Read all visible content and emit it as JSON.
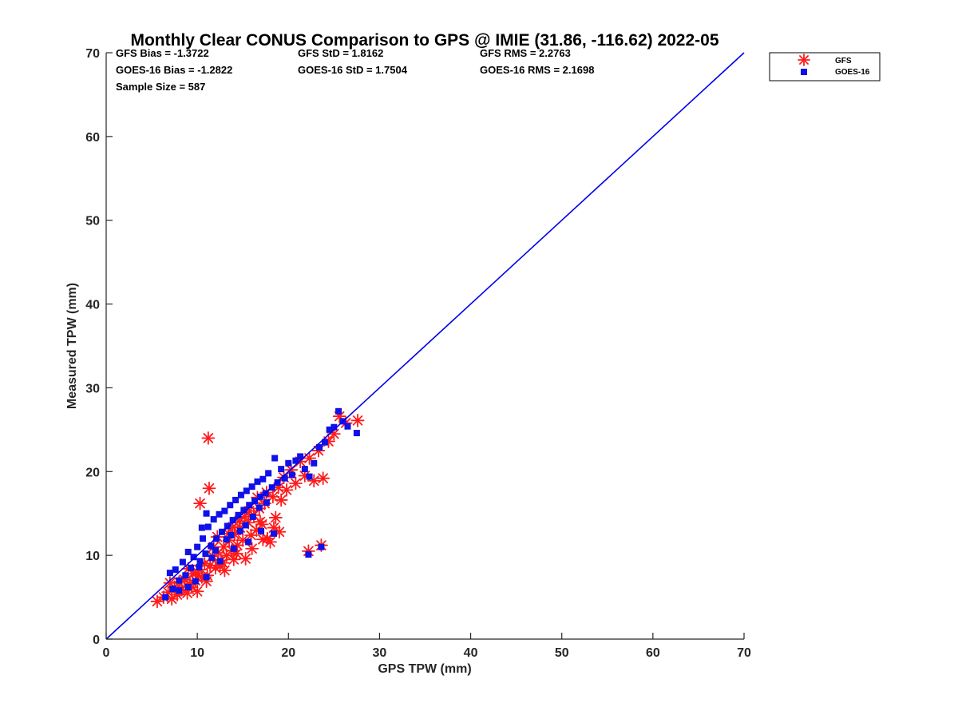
{
  "chart_data": {
    "type": "scatter",
    "title": "Monthly Clear CONUS Comparison to GPS @ IMIE (31.86, -116.62) 2022-05",
    "xlabel": "GPS TPW (mm)",
    "ylabel": "Measured TPW (mm)",
    "xlim": [
      0,
      70
    ],
    "ylim": [
      0,
      70
    ],
    "xticks": [
      "0",
      "10",
      "20",
      "30",
      "40",
      "50",
      "60",
      "70"
    ],
    "yticks": [
      "0",
      "10",
      "20",
      "30",
      "40",
      "50",
      "60",
      "70"
    ],
    "grid": false,
    "legend_position": "top-right, outside",
    "stats": [
      [
        "GFS Bias = -1.3722",
        "GFS StD = 1.8162",
        "GFS RMS = 2.2763"
      ],
      [
        "GOES-16 Bias = -1.2822",
        "GOES-16 StD = 1.7504",
        "GOES-16 RMS = 2.1698"
      ],
      [
        "Sample Size = 587"
      ]
    ],
    "reference_line": {
      "x": [
        0,
        70
      ],
      "y": [
        0,
        70
      ],
      "color": "#0000ee"
    },
    "series": [
      {
        "name": "GFS",
        "marker": "asterisk",
        "color": "#ff1a1a",
        "points": [
          [
            5.6,
            4.5
          ],
          [
            6.3,
            5.0
          ],
          [
            6.8,
            5.6
          ],
          [
            7.2,
            4.8
          ],
          [
            7.5,
            6.2
          ],
          [
            7.8,
            5.3
          ],
          [
            8.0,
            6.8
          ],
          [
            8.3,
            5.9
          ],
          [
            8.6,
            7.1
          ],
          [
            8.9,
            5.5
          ],
          [
            9.2,
            6.6
          ],
          [
            9.5,
            7.8
          ],
          [
            9.8,
            7.0
          ],
          [
            10.0,
            5.7
          ],
          [
            10.2,
            8.3
          ],
          [
            10.5,
            7.4
          ],
          [
            10.8,
            9.0
          ],
          [
            11.1,
            7.6
          ],
          [
            11.4,
            8.8
          ],
          [
            11.7,
            9.9
          ],
          [
            12.0,
            8.5
          ],
          [
            12.3,
            10.3
          ],
          [
            12.6,
            9.4
          ],
          [
            12.9,
            11.0
          ],
          [
            13.2,
            10.0
          ],
          [
            13.5,
            11.8
          ],
          [
            13.8,
            10.6
          ],
          [
            14.1,
            12.5
          ],
          [
            14.4,
            11.2
          ],
          [
            14.7,
            13.3
          ],
          [
            15.0,
            11.8
          ],
          [
            15.3,
            9.6
          ],
          [
            15.6,
            13.9
          ],
          [
            15.9,
            12.4
          ],
          [
            16.2,
            14.8
          ],
          [
            16.5,
            13.0
          ],
          [
            16.8,
            15.6
          ],
          [
            17.1,
            13.7
          ],
          [
            17.4,
            16.2
          ],
          [
            17.7,
            12.0
          ],
          [
            18.0,
            11.6
          ],
          [
            18.3,
            17.0
          ],
          [
            18.6,
            14.5
          ],
          [
            18.9,
            18.1
          ],
          [
            19.2,
            16.6
          ],
          [
            19.5,
            19.3
          ],
          [
            19.8,
            17.8
          ],
          [
            20.3,
            20.2
          ],
          [
            20.8,
            18.6
          ],
          [
            21.3,
            21.2
          ],
          [
            21.8,
            19.5
          ],
          [
            22.3,
            21.6
          ],
          [
            22.8,
            18.9
          ],
          [
            23.3,
            22.5
          ],
          [
            23.8,
            19.2
          ],
          [
            24.4,
            23.6
          ],
          [
            25.0,
            24.5
          ],
          [
            25.6,
            26.6
          ],
          [
            26.3,
            25.8
          ],
          [
            27.6,
            26.1
          ],
          [
            11.2,
            24.0
          ],
          [
            11.3,
            18.0
          ],
          [
            10.3,
            16.2
          ],
          [
            22.2,
            10.5
          ],
          [
            23.6,
            11.2
          ],
          [
            13.0,
            8.2
          ],
          [
            14.0,
            9.5
          ],
          [
            16.0,
            10.8
          ],
          [
            19.0,
            12.8
          ],
          [
            9.4,
            6.2
          ],
          [
            10.1,
            7.6
          ],
          [
            11.0,
            6.9
          ],
          [
            12.5,
            8.7
          ],
          [
            13.4,
            12.6
          ],
          [
            14.6,
            14.1
          ],
          [
            15.7,
            15.3
          ],
          [
            16.6,
            16.9
          ],
          [
            17.6,
            17.5
          ],
          [
            18.4,
            13.3
          ],
          [
            8.1,
            5.8
          ],
          [
            7.0,
            6.7
          ],
          [
            9.0,
            8.4
          ],
          [
            11.8,
            11.0
          ],
          [
            12.2,
            12.2
          ],
          [
            13.9,
            13.4
          ],
          [
            15.2,
            14.6
          ],
          [
            16.9,
            14.0
          ],
          [
            17.2,
            11.9
          ],
          [
            14.3,
            10.2
          ],
          [
            12.8,
            9.1
          ]
        ]
      },
      {
        "name": "GOES-16",
        "marker": "square",
        "color": "#1010e8",
        "points": [
          [
            6.5,
            5.0
          ],
          [
            7.0,
            7.9
          ],
          [
            7.3,
            6.0
          ],
          [
            7.6,
            8.3
          ],
          [
            8.0,
            7.0
          ],
          [
            8.4,
            9.2
          ],
          [
            8.7,
            7.6
          ],
          [
            9.0,
            10.4
          ],
          [
            9.3,
            8.5
          ],
          [
            9.6,
            9.8
          ],
          [
            10.0,
            11.0
          ],
          [
            10.3,
            9.3
          ],
          [
            10.6,
            12.0
          ],
          [
            10.9,
            10.2
          ],
          [
            11.2,
            13.4
          ],
          [
            11.5,
            11.1
          ],
          [
            11.8,
            14.3
          ],
          [
            12.1,
            12.0
          ],
          [
            12.4,
            14.9
          ],
          [
            12.7,
            12.8
          ],
          [
            13.0,
            15.3
          ],
          [
            13.3,
            13.5
          ],
          [
            13.6,
            16.0
          ],
          [
            13.9,
            14.2
          ],
          [
            14.2,
            16.6
          ],
          [
            14.5,
            14.8
          ],
          [
            14.8,
            17.2
          ],
          [
            15.1,
            15.4
          ],
          [
            15.4,
            17.7
          ],
          [
            15.7,
            16.0
          ],
          [
            16.0,
            18.2
          ],
          [
            16.3,
            16.5
          ],
          [
            16.6,
            18.8
          ],
          [
            16.9,
            17.0
          ],
          [
            17.2,
            19.1
          ],
          [
            17.5,
            17.4
          ],
          [
            17.8,
            19.8
          ],
          [
            18.2,
            18.1
          ],
          [
            18.5,
            21.6
          ],
          [
            18.8,
            18.7
          ],
          [
            19.2,
            20.3
          ],
          [
            19.6,
            19.2
          ],
          [
            20.0,
            21.0
          ],
          [
            20.4,
            19.6
          ],
          [
            20.8,
            21.3
          ],
          [
            21.3,
            21.8
          ],
          [
            21.8,
            20.3
          ],
          [
            22.3,
            19.4
          ],
          [
            22.8,
            21.0
          ],
          [
            23.4,
            22.9
          ],
          [
            24.0,
            23.5
          ],
          [
            24.5,
            25.0
          ],
          [
            25.0,
            25.3
          ],
          [
            25.5,
            27.2
          ],
          [
            26.0,
            26.0
          ],
          [
            26.5,
            25.4
          ],
          [
            27.5,
            24.6
          ],
          [
            22.2,
            10.1
          ],
          [
            23.6,
            11.0
          ],
          [
            11.0,
            15.0
          ],
          [
            10.5,
            13.3
          ],
          [
            9.0,
            6.2
          ],
          [
            8.0,
            5.8
          ],
          [
            9.8,
            6.9
          ],
          [
            11.0,
            7.4
          ],
          [
            12.5,
            9.3
          ],
          [
            14.0,
            10.8
          ],
          [
            15.6,
            11.6
          ],
          [
            17.0,
            12.9
          ],
          [
            18.4,
            12.6
          ],
          [
            13.2,
            11.9
          ],
          [
            14.7,
            12.9
          ],
          [
            16.1,
            14.6
          ],
          [
            12.0,
            10.6
          ],
          [
            10.2,
            8.6
          ],
          [
            15.3,
            13.6
          ],
          [
            16.8,
            15.7
          ],
          [
            11.6,
            9.7
          ],
          [
            13.7,
            12.4
          ],
          [
            17.6,
            16.3
          ]
        ]
      }
    ]
  }
}
